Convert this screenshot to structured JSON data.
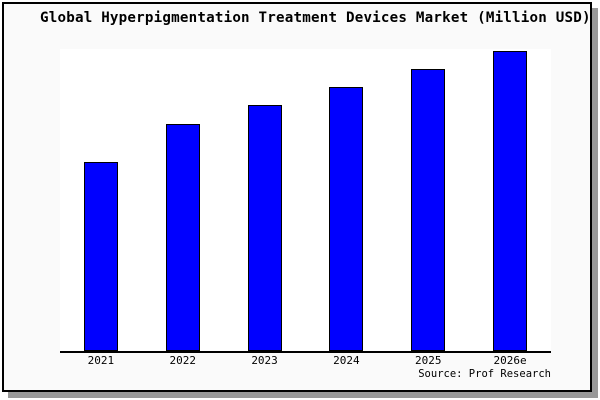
{
  "title": "Global Hyperpigmentation Treatment Devices Market (Million USD)",
  "source": "Source: Prof Research",
  "colors": {
    "bar_fill": "#0000ff",
    "bar_border": "#000000",
    "canvas_background": "#fafafa",
    "plot_background": "#ffffff",
    "axis": "#000000",
    "frame_border": "#000000",
    "frame_shadow": "#999999",
    "text": "#000000"
  },
  "chart_data": {
    "type": "bar",
    "title": "Global Hyperpigmentation Treatment Devices Market (Million USD)",
    "categories": [
      "2021",
      "2022",
      "2023",
      "2024",
      "2025",
      "2026e"
    ],
    "values": [
      189,
      227,
      246,
      264,
      282,
      300
    ],
    "units": "relative (y-axis unlabeled; values estimated as bar pixel heights)",
    "xlabel": "",
    "ylabel": "",
    "ylim": [
      0,
      302
    ],
    "y_axis_labeled": false,
    "gridlines": false,
    "legend": false,
    "bar_color": "#0000ff",
    "annotation": "Source: Prof Research"
  }
}
